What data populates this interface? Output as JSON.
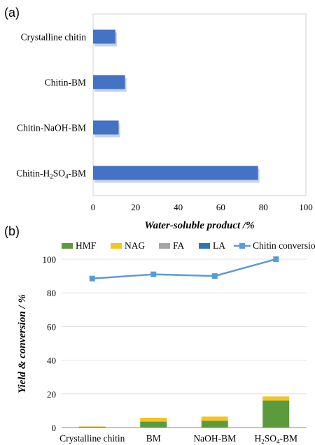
{
  "chart_data": [
    {
      "panel": "(a)",
      "type": "bar",
      "orientation": "horizontal",
      "categories": [
        {
          "text": "Crystalline chitin"
        },
        {
          "text": "Chitin-BM"
        },
        {
          "text": "Chitin-NaOH-BM"
        },
        {
          "text": "Chitin-",
          "sub1": "2",
          "mid": "SO",
          "sub2": "4",
          "pre": "H",
          "post": "-BM"
        }
      ],
      "values": [
        10.5,
        15,
        12,
        77.5
      ],
      "xlabel": "Water-soluble product /%",
      "xlim": [
        0,
        100
      ],
      "xticks": [
        0,
        20,
        40,
        60,
        80,
        100
      ],
      "bar_color": "#4472c4"
    },
    {
      "panel": "(b)",
      "type": "bar",
      "stacked": true,
      "categories": [
        {
          "text": "Crystalline chitin"
        },
        {
          "text": "BM"
        },
        {
          "text": "NaOH-BM"
        },
        {
          "pre": "H",
          "sub1": "2",
          "mid": "SO",
          "sub2": "4",
          "post": "-BM"
        }
      ],
      "series": [
        {
          "name": "HMF",
          "values": [
            0.5,
            3.5,
            4,
            16
          ],
          "color": "#5b9a3d"
        },
        {
          "name": "NAG",
          "values": [
            0.2,
            2.3,
            2.5,
            2.5
          ],
          "color": "#f6c324"
        },
        {
          "name": "FA",
          "values": [
            0,
            0,
            0,
            0
          ],
          "color": "#a5a5a5"
        },
        {
          "name": "LA",
          "values": [
            0,
            0,
            0,
            0
          ],
          "color": "#2e75b6"
        }
      ],
      "line_series": {
        "name": "Chitin conversion",
        "values": [
          88.5,
          91,
          90,
          100
        ],
        "color": "#5b9bd5"
      },
      "ylabel": "Yield & conversion / %",
      "ylim": [
        0,
        100
      ],
      "yticks": [
        0,
        20,
        40,
        60,
        80,
        100
      ]
    }
  ]
}
